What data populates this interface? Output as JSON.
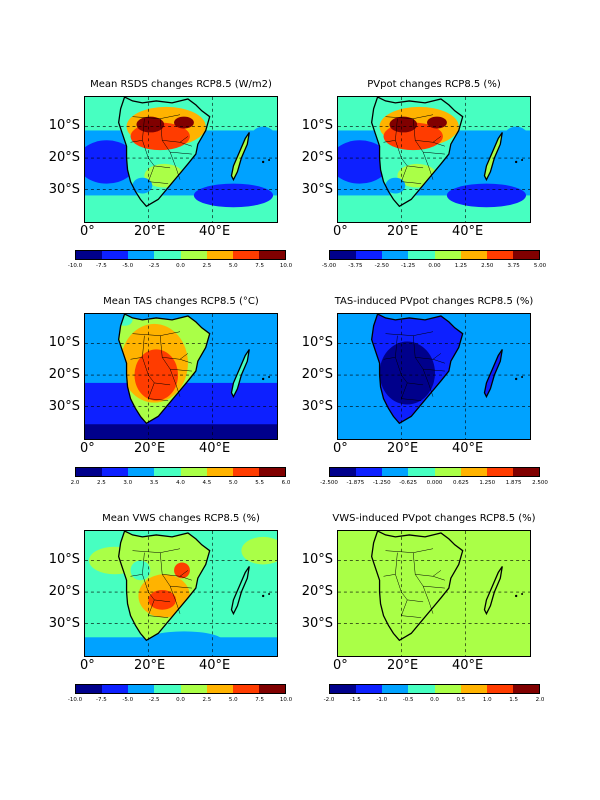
{
  "palette": [
    "#00008b",
    "#0d20ff",
    "#00a2ff",
    "#47ffc1",
    "#aaff47",
    "#ffb300",
    "#ff3c00",
    "#800000"
  ],
  "map_axes": {
    "lat_labels": [
      "10°S",
      "20°S",
      "30°S"
    ],
    "lon_labels": [
      "0°",
      "20°E",
      "40°E"
    ]
  },
  "panels": [
    {
      "title": "Mean RSDS changes RCP8.5 (W/m2)",
      "variant": "rsds",
      "ticks": [
        "-10.0",
        "-7.5",
        "-5.0",
        "-2.5",
        "0.0",
        "2.5",
        "5.0",
        "7.5",
        "10.0"
      ]
    },
    {
      "title": "PVpot changes RCP8.5 (%)",
      "variant": "pvpot",
      "ticks": [
        "-5.00",
        "-3.75",
        "-2.50",
        "-1.25",
        "0.00",
        "1.25",
        "2.50",
        "3.75",
        "5.00"
      ]
    },
    {
      "title": "Mean TAS changes RCP8.5 (°C)",
      "variant": "tas",
      "ticks": [
        "2.0",
        "2.5",
        "3.0",
        "3.5",
        "4.0",
        "4.5",
        "5.0",
        "5.5",
        "6.0"
      ]
    },
    {
      "title": "TAS-induced PVpot changes RCP8.5 (%)",
      "variant": "tasind",
      "ticks": [
        "-2.500",
        "-1.875",
        "-1.250",
        "-0.625",
        "0.000",
        "0.625",
        "1.250",
        "1.875",
        "2.500"
      ]
    },
    {
      "title": "Mean VWS changes RCP8.5 (%)",
      "variant": "vws",
      "ticks": [
        "-10.0",
        "-7.5",
        "-5.0",
        "-2.5",
        "0.0",
        "2.5",
        "5.0",
        "7.5",
        "10.0"
      ]
    },
    {
      "title": "VWS-induced PVpot changes RCP8.5 (%)",
      "variant": "vwsind",
      "ticks": [
        "-2.0",
        "-1.5",
        "-1.0",
        "-0.5",
        "0.0",
        "0.5",
        "1.0",
        "1.5",
        "2.0"
      ]
    }
  ]
}
